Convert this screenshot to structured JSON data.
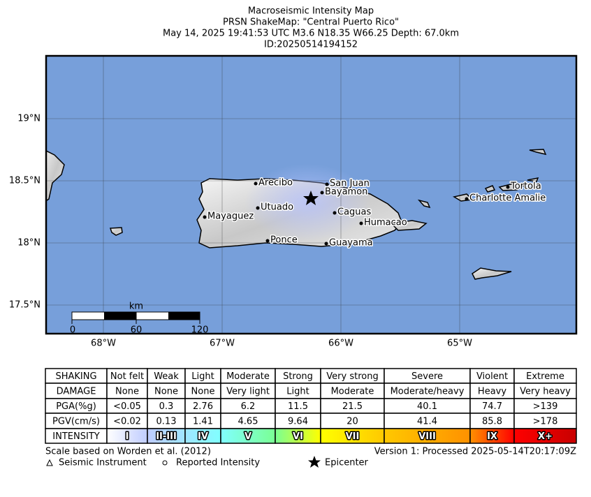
{
  "header": {
    "title": "Macroseismic Intensity Map",
    "subtitle": "PRSN ShakeMap: \"Central Puerto Rico\"",
    "event": "May 14, 2025 19:41:53 UTC M3.6 N18.35 W66.25 Depth: 67.0km",
    "id": "ID:20250514194152"
  },
  "map": {
    "lat_labels": [
      "19°N",
      "18.5°N",
      "18°N",
      "17.5°N"
    ],
    "lon_labels": [
      "68°W",
      "67°W",
      "66°W",
      "65°W"
    ],
    "cities": [
      "Arecibo",
      "San Juan",
      "Bayamon",
      "Utuado",
      "Caguas",
      "Mayaguez",
      "Humacao",
      "Ponce",
      "Guayama",
      "Tortola",
      "Charlotte Amalie"
    ],
    "scale_bar": {
      "unit": "km",
      "labels": [
        "0",
        "60",
        "120"
      ]
    }
  },
  "table": {
    "rows": [
      [
        "SHAKING",
        "Not felt",
        "Weak",
        "Light",
        "Moderate",
        "Strong",
        "Very strong",
        "Severe",
        "Violent",
        "Extreme"
      ],
      [
        "DAMAGE",
        "None",
        "None",
        "None",
        "Very light",
        "Light",
        "Moderate",
        "Moderate/heavy",
        "Heavy",
        "Very heavy"
      ],
      [
        "PGA(%g)",
        "<0.05",
        "0.3",
        "2.76",
        "6.2",
        "11.5",
        "21.5",
        "40.1",
        "74.7",
        ">139"
      ],
      [
        "PGV(cm/s)",
        "<0.02",
        "0.13",
        "1.41",
        "4.65",
        "9.64",
        "20",
        "41.4",
        "85.8",
        ">178"
      ],
      [
        "INTENSITY",
        "I",
        "II-III",
        "IV",
        "V",
        "VI",
        "VII",
        "VIII",
        "IX",
        "X+"
      ]
    ]
  },
  "footer": {
    "scale_note": "Scale based on Worden et al. (2012)",
    "version": "Version 1: Processed 2025-05-14T20:17:09Z",
    "legend": [
      "Seismic Instrument",
      "Reported Intensity",
      "Epicenter"
    ]
  }
}
